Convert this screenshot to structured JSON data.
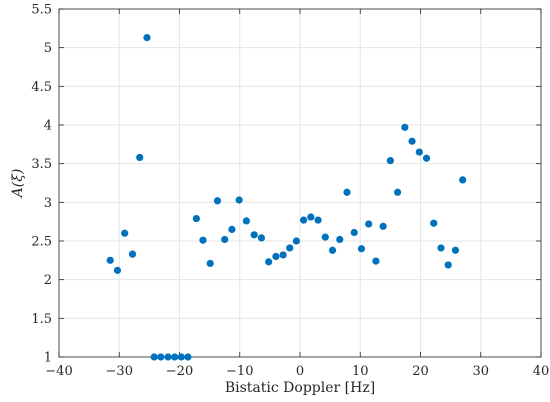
{
  "chart_data": {
    "type": "scatter",
    "xlabel": "Bistatic Doppler [Hz]",
    "ylabel": "A(ξ)",
    "xlim": [
      -40,
      40
    ],
    "ylim": [
      1,
      5.5
    ],
    "xticks": [
      -40,
      -30,
      -20,
      -10,
      0,
      10,
      20,
      30,
      40
    ],
    "xtick_labels": [
      "−40",
      "−30",
      "−20",
      "−10",
      "0",
      "10",
      "20",
      "30",
      "40"
    ],
    "yticks": [
      1,
      1.5,
      2,
      2.5,
      3,
      3.5,
      4,
      4.5,
      5,
      5.5
    ],
    "ytick_labels": [
      "1",
      "1.5",
      "2",
      "2.5",
      "3",
      "3.5",
      "4",
      "4.5",
      "5",
      "5.5"
    ],
    "grid": true,
    "marker_color": "#0072BD",
    "points": [
      {
        "x": -31.5,
        "y": 2.25
      },
      {
        "x": -30.3,
        "y": 2.12
      },
      {
        "x": -29.1,
        "y": 2.6
      },
      {
        "x": -27.8,
        "y": 2.33
      },
      {
        "x": -26.6,
        "y": 3.58
      },
      {
        "x": -25.4,
        "y": 5.13
      },
      {
        "x": -24.2,
        "y": 1.0
      },
      {
        "x": -23.1,
        "y": 1.0
      },
      {
        "x": -21.9,
        "y": 1.0
      },
      {
        "x": -20.8,
        "y": 1.0
      },
      {
        "x": -19.7,
        "y": 1.0
      },
      {
        "x": -18.6,
        "y": 1.0
      },
      {
        "x": -17.2,
        "y": 2.79
      },
      {
        "x": -16.1,
        "y": 2.51
      },
      {
        "x": -14.9,
        "y": 2.21
      },
      {
        "x": -13.7,
        "y": 3.02
      },
      {
        "x": -12.5,
        "y": 2.52
      },
      {
        "x": -11.3,
        "y": 2.65
      },
      {
        "x": -10.1,
        "y": 3.03
      },
      {
        "x": -8.9,
        "y": 2.76
      },
      {
        "x": -7.6,
        "y": 2.58
      },
      {
        "x": -6.4,
        "y": 2.54
      },
      {
        "x": -5.2,
        "y": 2.23
      },
      {
        "x": -4.0,
        "y": 2.3
      },
      {
        "x": -2.8,
        "y": 2.32
      },
      {
        "x": -1.7,
        "y": 2.41
      },
      {
        "x": -0.6,
        "y": 2.5
      },
      {
        "x": 0.6,
        "y": 2.77
      },
      {
        "x": 1.8,
        "y": 2.81
      },
      {
        "x": 3.0,
        "y": 2.77
      },
      {
        "x": 4.2,
        "y": 2.55
      },
      {
        "x": 5.4,
        "y": 2.38
      },
      {
        "x": 6.6,
        "y": 2.52
      },
      {
        "x": 7.8,
        "y": 3.13
      },
      {
        "x": 9.0,
        "y": 2.61
      },
      {
        "x": 10.2,
        "y": 2.4
      },
      {
        "x": 11.4,
        "y": 2.72
      },
      {
        "x": 12.6,
        "y": 2.24
      },
      {
        "x": 13.8,
        "y": 2.69
      },
      {
        "x": 15.0,
        "y": 3.54
      },
      {
        "x": 16.2,
        "y": 3.13
      },
      {
        "x": 17.4,
        "y": 3.97
      },
      {
        "x": 18.6,
        "y": 3.79
      },
      {
        "x": 19.8,
        "y": 3.65
      },
      {
        "x": 21.0,
        "y": 3.57
      },
      {
        "x": 22.2,
        "y": 2.73
      },
      {
        "x": 23.4,
        "y": 2.41
      },
      {
        "x": 24.6,
        "y": 2.19
      },
      {
        "x": 25.8,
        "y": 2.38
      },
      {
        "x": 27.0,
        "y": 3.29
      }
    ]
  }
}
